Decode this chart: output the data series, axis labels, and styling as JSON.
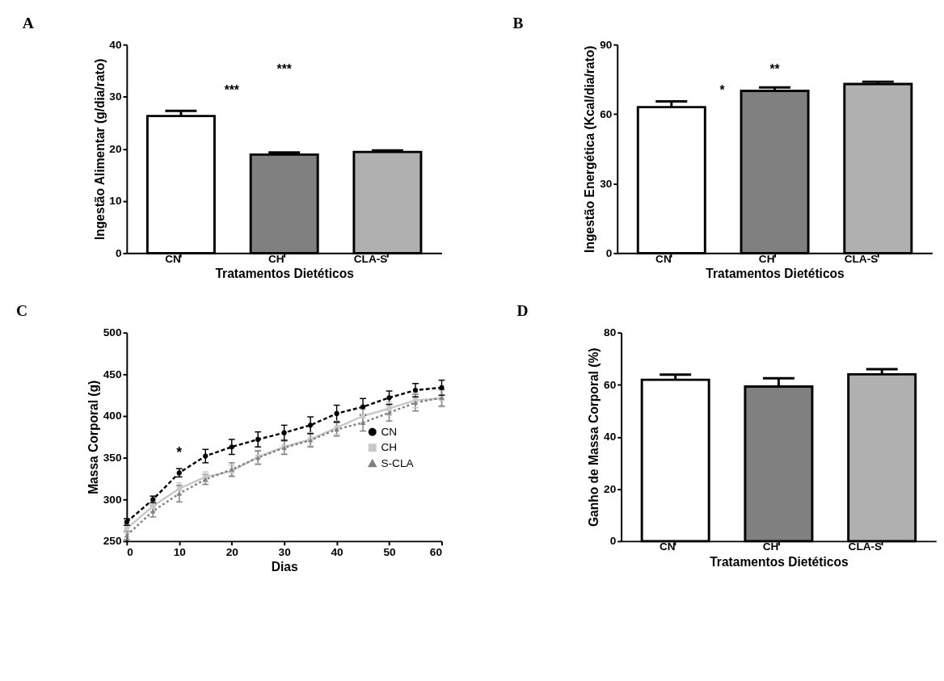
{
  "chart_data": [
    {
      "type": "bar",
      "title": "A",
      "xlabel": "Tratamentos Dietéticos",
      "ylabel": "Ingestão Alimentar (g/dia/rato)",
      "categories": [
        "CN",
        "CH",
        "CLA-S"
      ],
      "values": [
        26.3,
        18.9,
        19.4
      ],
      "errors": [
        1.0,
        0.4,
        0.3
      ],
      "colors": [
        "#ffffff",
        "#808080",
        "#b0b0b0"
      ],
      "ylim": [
        0,
        40
      ],
      "yticks": [
        0,
        10,
        20,
        30,
        40
      ],
      "grid": false,
      "annotations": [
        "***",
        "***"
      ]
    },
    {
      "type": "bar",
      "title": "B",
      "xlabel": "Tratamentos Dietéticos",
      "ylabel": "Ingestão Energética (Kcal/dia/rato)",
      "categories": [
        "CN",
        "CH",
        "CLA-S"
      ],
      "values": [
        63,
        70,
        73
      ],
      "errors": [
        2.5,
        1.5,
        1.0
      ],
      "colors": [
        "#ffffff",
        "#808080",
        "#b0b0b0"
      ],
      "ylim": [
        0,
        90
      ],
      "yticks": [
        0,
        30,
        60,
        90
      ],
      "grid": false,
      "annotations": [
        "*",
        "**"
      ]
    },
    {
      "type": "line",
      "title": "C",
      "xlabel": "Dias",
      "ylabel": "Massa Corporal (g)",
      "x": [
        0,
        5,
        10,
        15,
        20,
        25,
        30,
        35,
        40,
        45,
        50,
        55,
        60
      ],
      "series": [
        {
          "name": "CN",
          "color": "#000000",
          "marker": "circle",
          "line_style": "dashed",
          "values": [
            273,
            300,
            332,
            352,
            363,
            372,
            380,
            389,
            403,
            411,
            422,
            431,
            434
          ],
          "errors": [
            4,
            4,
            5,
            8,
            9,
            9,
            9,
            10,
            10,
            10,
            8,
            8,
            9
          ]
        },
        {
          "name": "CH",
          "color": "#c8c8c8",
          "marker": "square",
          "line_style": "solid",
          "values": [
            265,
            292,
            313,
            327,
            334,
            351,
            363,
            372,
            386,
            400,
            409,
            419,
            421
          ],
          "errors": [
            5,
            6,
            7,
            6,
            7,
            8,
            8,
            8,
            8,
            8,
            8,
            9,
            10
          ]
        },
        {
          "name": "S-CLA",
          "color": "#808080",
          "marker": "triangle",
          "line_style": "dotted",
          "values": [
            257,
            286,
            307,
            324,
            336,
            350,
            362,
            371,
            384,
            392,
            404,
            416,
            422
          ],
          "errors": [
            5,
            7,
            10,
            6,
            8,
            8,
            8,
            8,
            8,
            10,
            10,
            10,
            10
          ]
        }
      ],
      "xlim": [
        0,
        60
      ],
      "xticks": [
        0,
        10,
        20,
        30,
        40,
        50,
        60
      ],
      "ylim": [
        250,
        500
      ],
      "yticks": [
        250,
        300,
        350,
        400,
        450,
        500
      ],
      "grid": false,
      "legend": "right",
      "annotations": [
        "*"
      ]
    },
    {
      "type": "bar",
      "title": "D",
      "xlabel": "Tratamentos Dietéticos",
      "ylabel": "Ganho de Massa Corporal (%)",
      "categories": [
        "CN",
        "CH",
        "CLA-S"
      ],
      "values": [
        61.9,
        59.3,
        64
      ],
      "errors": [
        2,
        3.2,
        2
      ],
      "colors": [
        "#ffffff",
        "#808080",
        "#b0b0b0"
      ],
      "ylim": [
        0,
        80
      ],
      "yticks": [
        0,
        20,
        40,
        60,
        80
      ],
      "grid": false
    }
  ]
}
